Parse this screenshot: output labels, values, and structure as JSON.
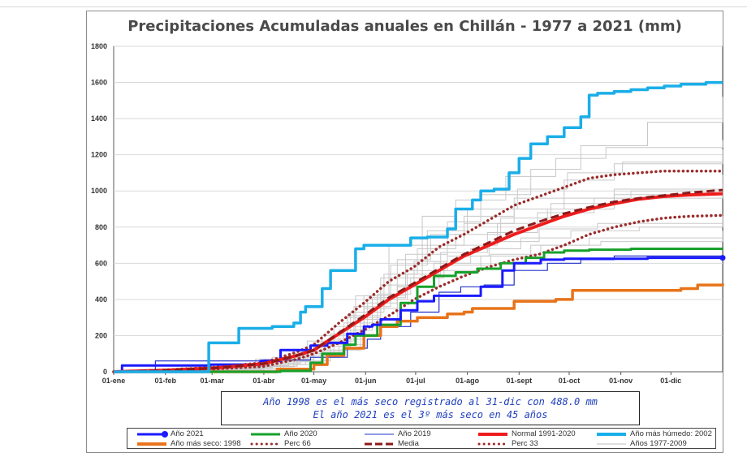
{
  "chart_data": {
    "type": "line",
    "title": "Precipitaciones Acumuladas anuales en Chillán - 1977 a 2021 (mm)",
    "x_labels": [
      "01-ene",
      "01-feb",
      "01-mar",
      "01-abr",
      "01-may",
      "01-jun",
      "01-jul",
      "01-ago",
      "01-sept",
      "01-oct",
      "01-nov",
      "01-dic"
    ],
    "x_label_days": [
      0,
      31,
      59,
      90,
      120,
      151,
      181,
      212,
      243,
      273,
      304,
      334
    ],
    "xlim": [
      0,
      365
    ],
    "ylim": [
      0,
      1800
    ],
    "y_ticks": [
      "0",
      "200",
      "400",
      "600",
      "800",
      "1000",
      "1200",
      "1400",
      "1600",
      "1800"
    ],
    "grid": true,
    "note_lines": [
      "Año 1998 es el más seco registrado al 31-dic con 488.0 mm",
      "El año 2021 es el 3º más seco en 45 años"
    ],
    "series": [
      {
        "name": "Año 2021",
        "color": "#1a1aff",
        "style": "solid-marker",
        "x": [
          0,
          5,
          30,
          58,
          88,
          100,
          118,
          128,
          140,
          150,
          155,
          160,
          168,
          172,
          175,
          182,
          192,
          200,
          220,
          233,
          240,
          256,
          270,
          290,
          320,
          365
        ],
        "values": [
          0,
          35,
          35,
          40,
          60,
          120,
          145,
          160,
          210,
          250,
          260,
          290,
          290,
          340,
          340,
          390,
          420,
          420,
          470,
          560,
          600,
          620,
          625,
          625,
          630,
          630
        ]
      },
      {
        "name": "Año 2020",
        "color": "#16a12a",
        "style": "solid",
        "x": [
          0,
          60,
          100,
          118,
          125,
          138,
          145,
          158,
          172,
          182,
          192,
          205,
          218,
          232,
          247,
          258,
          270,
          285,
          310,
          365
        ],
        "values": [
          0,
          0,
          5,
          50,
          100,
          150,
          200,
          260,
          380,
          470,
          530,
          550,
          570,
          600,
          630,
          660,
          670,
          675,
          680,
          680
        ]
      },
      {
        "name": "Año 2019",
        "color": "#2233cc",
        "style": "thin",
        "x": [
          0,
          20,
          25,
          60,
          90,
          118,
          140,
          152,
          160,
          178,
          195,
          208,
          222,
          240,
          260,
          280,
          300,
          365
        ],
        "values": [
          0,
          0,
          60,
          60,
          65,
          80,
          130,
          180,
          250,
          330,
          440,
          470,
          480,
          560,
          600,
          620,
          640,
          645
        ]
      },
      {
        "name": "Normal 1991-2020",
        "color": "#ee1c1c",
        "style": "thick",
        "x": [
          0,
          30,
          60,
          90,
          110,
          120,
          135,
          150,
          165,
          180,
          195,
          210,
          225,
          240,
          255,
          270,
          285,
          300,
          315,
          330,
          345,
          365
        ],
        "values": [
          0,
          8,
          20,
          45,
          90,
          120,
          210,
          300,
          400,
          480,
          560,
          640,
          700,
          760,
          810,
          860,
          900,
          930,
          955,
          970,
          978,
          985
        ]
      },
      {
        "name": "Año más húmedo: 2002",
        "color": "#1aaee8",
        "style": "thick",
        "x": [
          0,
          55,
          57,
          75,
          90,
          95,
          108,
          112,
          115,
          125,
          130,
          145,
          150,
          160,
          170,
          178,
          185,
          188,
          200,
          205,
          215,
          220,
          228,
          237,
          243,
          250,
          260,
          270,
          280,
          285,
          290,
          300,
          310,
          320,
          330,
          340,
          355,
          365
        ],
        "values": [
          0,
          0,
          160,
          240,
          240,
          250,
          270,
          330,
          360,
          460,
          560,
          680,
          700,
          700,
          700,
          740,
          740,
          745,
          790,
          900,
          950,
          1000,
          1010,
          1100,
          1180,
          1260,
          1300,
          1350,
          1410,
          1530,
          1540,
          1550,
          1560,
          1570,
          1580,
          1590,
          1600,
          1600
        ]
      },
      {
        "name": "Año más seco: 1998",
        "color": "#e8731a",
        "style": "thick",
        "x": [
          0,
          60,
          98,
          120,
          128,
          138,
          150,
          160,
          170,
          182,
          200,
          210,
          215,
          235,
          240,
          265,
          275,
          290,
          305,
          330,
          340,
          350,
          365
        ],
        "values": [
          0,
          0,
          15,
          40,
          90,
          130,
          200,
          250,
          280,
          300,
          320,
          330,
          350,
          350,
          390,
          400,
          450,
          450,
          450,
          450,
          460,
          480,
          488
        ]
      },
      {
        "name": "Perc 66",
        "color": "#9b2b2b",
        "style": "dots",
        "x": [
          0,
          30,
          60,
          90,
          110,
          120,
          135,
          150,
          165,
          180,
          195,
          210,
          225,
          240,
          255,
          270,
          285,
          300,
          315,
          330,
          345,
          365
        ],
        "values": [
          0,
          10,
          25,
          50,
          110,
          150,
          270,
          380,
          500,
          580,
          690,
          760,
          840,
          920,
          970,
          1020,
          1070,
          1090,
          1100,
          1110,
          1110,
          1110
        ]
      },
      {
        "name": "Media",
        "color": "#8b1a1a",
        "style": "dash",
        "x": [
          0,
          30,
          60,
          90,
          110,
          120,
          135,
          150,
          165,
          180,
          195,
          210,
          225,
          240,
          255,
          270,
          285,
          300,
          315,
          330,
          345,
          365
        ],
        "values": [
          0,
          8,
          20,
          45,
          90,
          120,
          215,
          310,
          410,
          490,
          570,
          650,
          715,
          780,
          830,
          875,
          910,
          940,
          960,
          975,
          990,
          1005
        ]
      },
      {
        "name": "Perc 33",
        "color": "#9b2b2b",
        "style": "dots",
        "x": [
          0,
          30,
          60,
          90,
          110,
          120,
          135,
          150,
          165,
          180,
          195,
          210,
          225,
          240,
          255,
          270,
          285,
          300,
          315,
          330,
          345,
          365
        ],
        "values": [
          0,
          5,
          15,
          30,
          70,
          100,
          160,
          230,
          310,
          400,
          470,
          530,
          580,
          620,
          650,
          700,
          760,
          800,
          830,
          850,
          860,
          865
        ]
      },
      {
        "name": "Años 1977-2009",
        "color": "#bcbcbc",
        "style": "thin-gray",
        "x": [],
        "values": []
      }
    ],
    "background_series": [
      {
        "x": [
          0,
          60,
          100,
          120,
          150,
          170,
          190,
          210,
          240,
          270,
          300,
          365
        ],
        "values": [
          0,
          20,
          60,
          150,
          380,
          620,
          760,
          860,
          960,
          1060,
          1150,
          1210
        ]
      },
      {
        "x": [
          0,
          40,
          90,
          115,
          140,
          160,
          180,
          200,
          230,
          260,
          300,
          365
        ],
        "values": [
          0,
          15,
          40,
          120,
          300,
          480,
          610,
          700,
          820,
          900,
          980,
          1030
        ]
      },
      {
        "x": [
          0,
          50,
          95,
          125,
          145,
          165,
          185,
          205,
          235,
          265,
          295,
          365
        ],
        "values": [
          0,
          25,
          80,
          200,
          420,
          700,
          860,
          950,
          1080,
          1180,
          1240,
          1280
        ]
      },
      {
        "x": [
          0,
          30,
          80,
          110,
          135,
          155,
          175,
          200,
          225,
          255,
          290,
          365
        ],
        "values": [
          0,
          10,
          30,
          80,
          230,
          410,
          560,
          640,
          720,
          790,
          820,
          860
        ]
      },
      {
        "x": [
          0,
          45,
          85,
          120,
          140,
          160,
          185,
          210,
          240,
          270,
          310,
          365
        ],
        "values": [
          0,
          30,
          70,
          160,
          310,
          520,
          700,
          820,
          900,
          960,
          1000,
          1040
        ]
      },
      {
        "x": [
          0,
          60,
          100,
          130,
          150,
          175,
          200,
          220,
          250,
          280,
          320,
          365
        ],
        "values": [
          0,
          20,
          60,
          180,
          420,
          650,
          830,
          980,
          1120,
          1250,
          1380,
          1520
        ]
      },
      {
        "x": [
          0,
          35,
          75,
          105,
          130,
          150,
          170,
          195,
          220,
          250,
          285,
          365
        ],
        "values": [
          0,
          12,
          35,
          90,
          210,
          350,
          470,
          560,
          640,
          700,
          740,
          780
        ]
      },
      {
        "x": [
          0,
          55,
          95,
          118,
          142,
          162,
          182,
          205,
          232,
          262,
          300,
          365
        ],
        "values": [
          0,
          18,
          55,
          140,
          330,
          540,
          680,
          760,
          850,
          930,
          1010,
          1090
        ]
      },
      {
        "x": [
          0,
          40,
          90,
          112,
          138,
          158,
          178,
          198,
          226,
          256,
          292,
          365
        ],
        "values": [
          0,
          22,
          48,
          110,
          270,
          430,
          520,
          590,
          650,
          700,
          720,
          740
        ]
      },
      {
        "x": [
          0,
          50,
          88,
          116,
          144,
          166,
          188,
          212,
          242,
          272,
          305,
          365
        ],
        "values": [
          0,
          26,
          62,
          170,
          360,
          590,
          780,
          900,
          1010,
          1100,
          1160,
          1230
        ]
      },
      {
        "x": [
          0,
          65,
          102,
          126,
          148,
          170,
          192,
          214,
          244,
          274,
          315,
          365
        ],
        "values": [
          0,
          10,
          40,
          120,
          290,
          470,
          600,
          680,
          740,
          780,
          800,
          820
        ]
      },
      {
        "x": [
          0,
          30,
          70,
          108,
          132,
          152,
          176,
          196,
          224,
          254,
          288,
          365
        ],
        "values": [
          0,
          8,
          28,
          100,
          250,
          400,
          540,
          660,
          770,
          880,
          960,
          1040
        ]
      }
    ]
  },
  "legend": {
    "items": [
      {
        "label": "Año 2021",
        "style": "marker",
        "color": "#1a1aff"
      },
      {
        "label": "Año 2020",
        "style": "solid",
        "color": "#16a12a"
      },
      {
        "label": "Año 2019",
        "style": "thin",
        "color": "#2233cc"
      },
      {
        "label": "Normal 1991-2020",
        "style": "thick",
        "color": "#ee1c1c"
      },
      {
        "label": "Año más húmedo: 2002",
        "style": "thick",
        "color": "#1aaee8"
      },
      {
        "label": "Año más seco: 1998",
        "style": "thick",
        "color": "#e8731a"
      },
      {
        "label": "Perc 66",
        "style": "dots",
        "color": "#9b2b2b"
      },
      {
        "label": "Media",
        "style": "dash",
        "color": "#8b1a1a"
      },
      {
        "label": "Perc 33",
        "style": "dots",
        "color": "#9b2b2b"
      },
      {
        "label": "Años 1977-2009",
        "style": "thin",
        "color": "#bcbcbc"
      }
    ]
  }
}
